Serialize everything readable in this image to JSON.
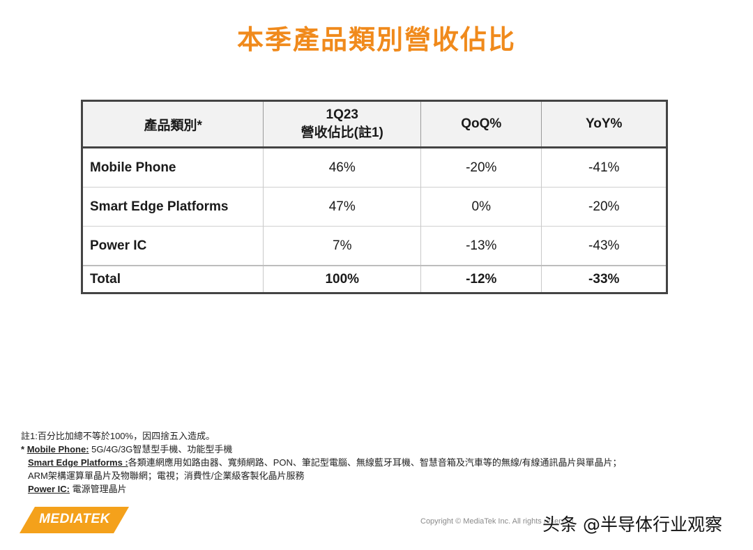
{
  "title": "本季產品類別營收佔比",
  "table": {
    "headers": {
      "category": "產品類別*",
      "period_line1": "1Q23",
      "period_line2": "營收佔比(註1)",
      "qoq": "QoQ%",
      "yoy": "YoY%"
    },
    "rows": [
      {
        "category": "Mobile Phone",
        "share": "46%",
        "qoq": "-20%",
        "yoy": "-41%"
      },
      {
        "category": "Smart Edge Platforms",
        "share": "47%",
        "qoq": "0%",
        "yoy": "-20%"
      },
      {
        "category": "Power IC",
        "share": "7%",
        "qoq": "-13%",
        "yoy": "-43%"
      }
    ],
    "total": {
      "category": "Total",
      "share": "100%",
      "qoq": "-12%",
      "yoy": "-33%"
    }
  },
  "notes": {
    "note1": "註1:百分比加總不等於100%，因四捨五入造成。",
    "star": "*",
    "mobile_term": "Mobile Phone:",
    "mobile_desc": " 5G/4G/3G智慧型手機、功能型手機",
    "smart_term": "Smart Edge Platforms :",
    "smart_desc": "各類連網應用如路由器、寬頻網路、PON、筆記型電腦、無線藍牙耳機、智慧音箱及汽車等的無線/有線通訊晶片與單晶片；",
    "smart_desc2": "ARM架構運算單晶片及物聯網；電視；消費性/企業級客製化晶片服務",
    "power_term": "Power IC:",
    "power_desc": " 電源管理晶片"
  },
  "footer": {
    "logo_text": "MEDIATEK",
    "copyright": "Copyright © MediaTek Inc. All rights reserved.",
    "watermark": "头条 @半导体行业观察"
  },
  "colors": {
    "title_orange": "#f08a1c",
    "logo_orange": "#f4a11b",
    "header_bg": "#f2f2f2",
    "border": "#444444"
  }
}
